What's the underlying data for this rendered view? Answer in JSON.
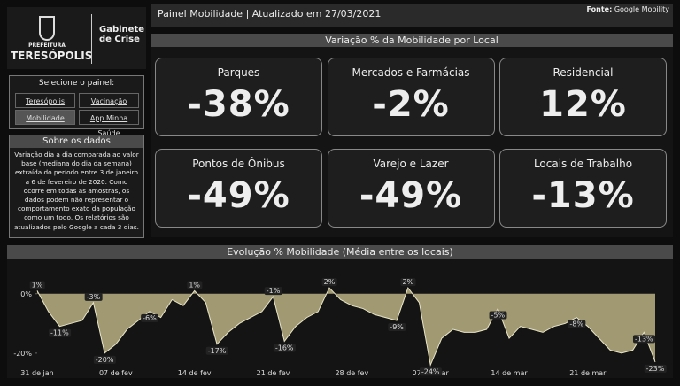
{
  "header": {
    "org_top": "PREFEITURA",
    "org_name": "TERESÓPOLIS",
    "unit": "Gabinete de Crise",
    "title": "Painel Mobilidade | Atualizado em 27/03/2021",
    "source_label": "Fonte:",
    "source": "Google Mobility"
  },
  "sidebar": {
    "select_title": "Selecione o painel:",
    "buttons": [
      "Teresópolis",
      "Vacinação",
      "Mobilidade",
      "App Minha Saúde"
    ],
    "about_title": "Sobre os dados",
    "about_text": "Variação dia a dia comparada ao valor base (mediana do dia da semana) extraída do período entre 3 de janeiro a 6 de fevereiro de 2020. Como ocorre em todas as amostras, os dados podem não representar o comportamento exato da população como um todo. Os relatórios são atualizados pelo Google a cada 3 dias."
  },
  "kpis": {
    "title": "Variação % da Mobilidade por Local",
    "cards": [
      {
        "label": "Parques",
        "value": "-38%"
      },
      {
        "label": "Mercados e Farmácias",
        "value": "-2%"
      },
      {
        "label": "Residencial",
        "value": "12%"
      },
      {
        "label": "Pontos de Ônibus",
        "value": "-49%"
      },
      {
        "label": "Varejo e Lazer",
        "value": "-49%"
      },
      {
        "label": "Locais de Trabalho",
        "value": "-13%"
      }
    ]
  },
  "chart_data": {
    "type": "area",
    "title": "Evolução % Mobilidade (Média entre os locais)",
    "color": "#b8b081",
    "categories": [
      "31 de jan",
      null,
      null,
      null,
      null,
      null,
      null,
      "07 de fev",
      null,
      null,
      null,
      null,
      null,
      null,
      "14 de fev",
      null,
      null,
      null,
      null,
      null,
      null,
      "21 de fev",
      null,
      null,
      null,
      null,
      null,
      null,
      "28 de fev",
      null,
      null,
      null,
      null,
      null,
      null,
      "07 de mar",
      null,
      null,
      null,
      null,
      null,
      null,
      "14 de mar",
      null,
      null,
      null,
      null,
      null,
      null,
      "21 de mar",
      null,
      null,
      null,
      null,
      null,
      null
    ],
    "values": [
      1,
      -6,
      -11,
      -10,
      -9,
      -3,
      -20,
      -17,
      -12,
      -9,
      -6,
      -8,
      -2,
      -4,
      1,
      -3,
      -17,
      -13,
      -10,
      -8,
      -6,
      -1,
      -16,
      -11,
      -8,
      -6,
      2,
      -2,
      -4,
      -5,
      -7,
      -8,
      -9,
      2,
      -3,
      -24,
      -15,
      -12,
      -13,
      -13,
      -12,
      -5,
      -15,
      -11,
      -12,
      -13,
      -11,
      -10,
      -8,
      -11,
      -15,
      -19,
      -20,
      -19,
      -13,
      -23
    ],
    "value_labels": [
      "1%",
      null,
      "-11%",
      null,
      null,
      "-3%",
      "-20%",
      null,
      null,
      null,
      "-6%",
      null,
      null,
      null,
      "1%",
      null,
      "-17%",
      null,
      null,
      null,
      null,
      "-1%",
      "-16%",
      null,
      null,
      null,
      "2%",
      null,
      null,
      null,
      null,
      null,
      "-9%",
      "2%",
      null,
      "-24%",
      null,
      null,
      null,
      null,
      null,
      "-5%",
      null,
      null,
      null,
      null,
      null,
      null,
      "-8%",
      null,
      null,
      null,
      null,
      null,
      "-13%",
      "-23%"
    ],
    "ylim": [
      -26,
      5
    ],
    "yticks": [
      {
        "value": 0,
        "label": "0%"
      },
      {
        "value": -20,
        "label": "-20%"
      }
    ]
  }
}
